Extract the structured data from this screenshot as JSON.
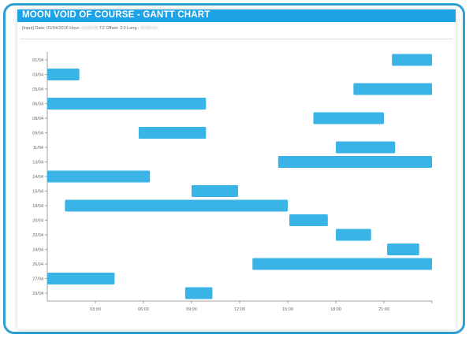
{
  "panel": {
    "title": "MOON VOID OF COURSE - GANTT CHART",
    "input_prefix": "[input] Date: 01/04/2016 Hour:",
    "input_hour": "14:00:00",
    "input_tz": "TZ Offset: 3.0 Long.:",
    "input_long": "00:00 (e)"
  },
  "chart_data": {
    "type": "gantt",
    "title": "MOON VOID OF COURSE - GANTT CHART",
    "xlabel": "",
    "ylabel": "",
    "xlim": [
      0,
      24
    ],
    "x_tick_values": [
      3,
      6,
      9,
      12,
      15,
      18,
      21
    ],
    "x_tick_labels": [
      "03:00",
      "06:00",
      "09:00",
      "12:00",
      "15:00",
      "18:00",
      "21:00"
    ],
    "categories": [
      "01/04",
      "03/04",
      "05/04",
      "06/04",
      "08/04",
      "09/04",
      "11/04",
      "13/04",
      "14/04",
      "16/04",
      "18/04",
      "20/04",
      "22/04",
      "24/04",
      "26/04",
      "27/04",
      "29/04"
    ],
    "series": [
      {
        "name": "Void of course",
        "start": [
          21.5,
          0.0,
          19.1,
          0.0,
          16.6,
          5.7,
          18.0,
          14.4,
          0.0,
          9.0,
          1.1,
          15.1,
          18.0,
          21.2,
          12.8,
          0.0,
          8.6
        ],
        "end": [
          24.0,
          2.0,
          24.0,
          9.9,
          21.0,
          9.9,
          21.7,
          24.0,
          6.4,
          11.9,
          15.0,
          17.5,
          20.2,
          23.2,
          24.0,
          4.2,
          10.3
        ]
      }
    ],
    "bar_color": "#3ab4e6",
    "grid": false
  }
}
